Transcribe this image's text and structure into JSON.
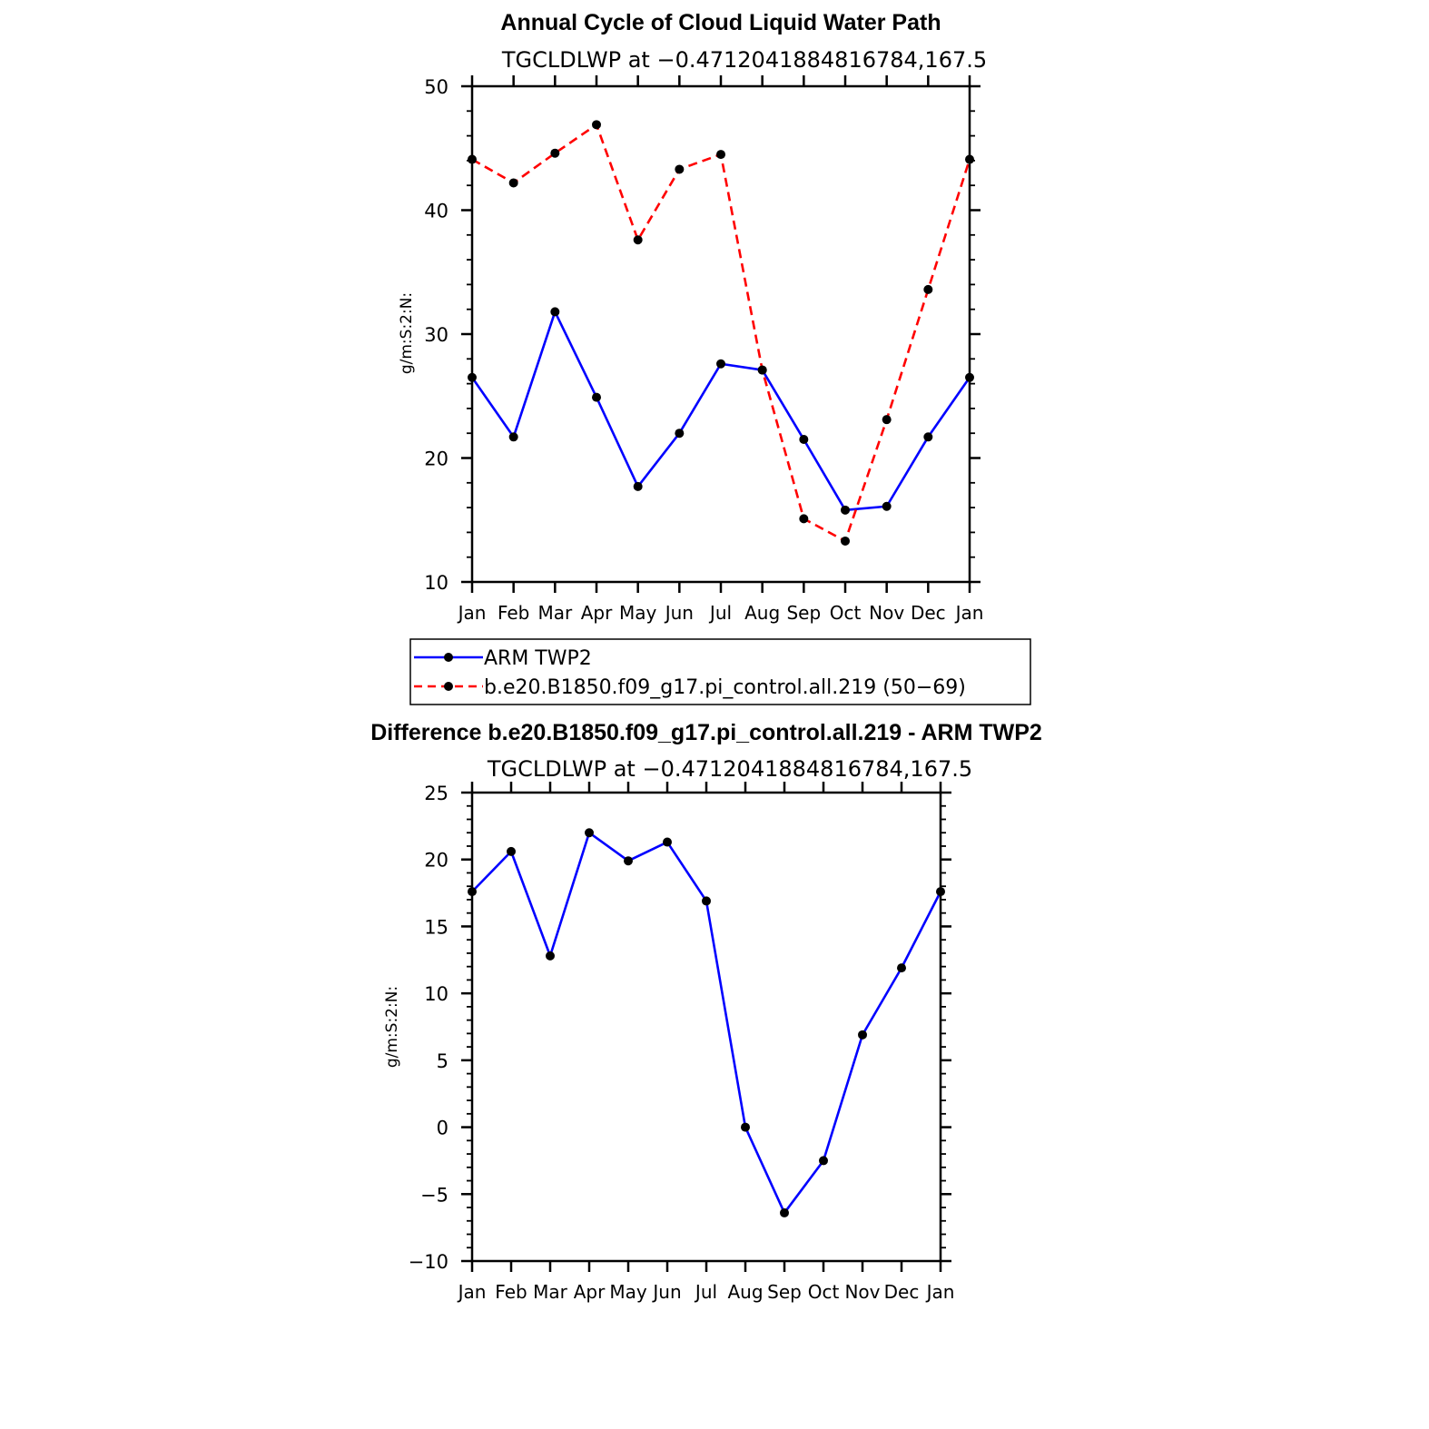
{
  "chart_data": [
    {
      "type": "line",
      "title": "Annual Cycle of Cloud Liquid Water Path",
      "subtitle": "TGCLDLWP at −0.4712041884816784,167.5",
      "ylabel": "g/m:S:2:N:",
      "ylim": [
        10,
        50
      ],
      "yticks": [
        "10",
        "20",
        "30",
        "40",
        "50"
      ],
      "categories": [
        "Jan",
        "Feb",
        "Mar",
        "Apr",
        "May",
        "Jun",
        "Jul",
        "Aug",
        "Sep",
        "Oct",
        "Nov",
        "Dec",
        "Jan"
      ],
      "series": [
        {
          "name": "ARM TWP2",
          "color": "#0000ff",
          "dash": "solid",
          "values": [
            26.5,
            21.7,
            31.8,
            24.9,
            17.7,
            22.0,
            27.6,
            27.1,
            21.5,
            15.8,
            16.1,
            21.7,
            26.5
          ]
        },
        {
          "name": "b.e20.B1850.f09_g17.pi_control.all.219 (50−69)",
          "color": "#ff0000",
          "dash": "dashed",
          "values": [
            44.1,
            42.2,
            44.6,
            46.9,
            37.6,
            43.3,
            44.5,
            27.1,
            15.1,
            13.3,
            23.1,
            33.6,
            44.1
          ]
        }
      ],
      "legend": {
        "position": "below",
        "entries": [
          "ARM TWP2",
          "b.e20.B1850.f09_g17.pi_control.all.219 (50−69)"
        ]
      }
    },
    {
      "type": "line",
      "title": "Difference b.e20.B1850.f09_g17.pi_control.all.219 - ARM TWP2",
      "subtitle": "TGCLDLWP at −0.4712041884816784,167.5",
      "ylabel": "g/m:S:2:N:",
      "ylim": [
        -10,
        25
      ],
      "yticks": [
        "−10",
        "−5",
        "0",
        "5",
        "10",
        "15",
        "20",
        "25"
      ],
      "categories": [
        "Jan",
        "Feb",
        "Mar",
        "Apr",
        "May",
        "Jun",
        "Jul",
        "Aug",
        "Sep",
        "Oct",
        "Nov",
        "Dec",
        "Jan"
      ],
      "series": [
        {
          "color": "#0000ff",
          "dash": "solid",
          "values": [
            17.6,
            20.6,
            12.8,
            22.0,
            19.9,
            21.3,
            16.9,
            0.0,
            -6.4,
            -2.5,
            6.9,
            11.9,
            17.6
          ]
        }
      ]
    }
  ]
}
